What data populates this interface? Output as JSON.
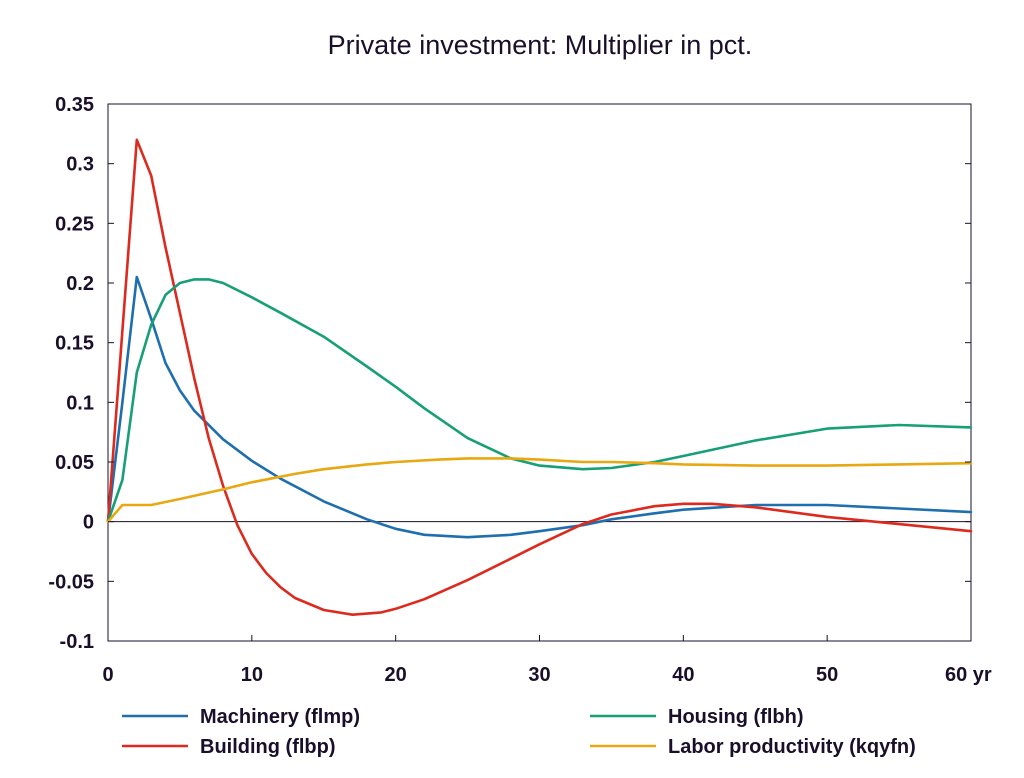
{
  "chart_data": {
    "type": "line",
    "title": "Private investment: Multiplier in pct.",
    "xlabel": "",
    "ylabel": "",
    "x_unit_label": "yr",
    "xlim": [
      0,
      60
    ],
    "ylim": [
      -0.1,
      0.35
    ],
    "xticks": [
      0,
      10,
      20,
      30,
      40,
      50,
      60
    ],
    "xtick_labels": [
      "0",
      "10",
      "20",
      "30",
      "40",
      "50",
      "60 yr"
    ],
    "yticks": [
      -0.1,
      -0.05,
      0,
      0.05,
      0.1,
      0.15,
      0.2,
      0.25,
      0.3,
      0.35
    ],
    "ytick_labels": [
      "-0.1",
      "-0.05",
      "0",
      "0.05",
      "0.1",
      "0.15",
      "0.2",
      "0.25",
      "0.3",
      "0.35"
    ],
    "grid": false,
    "zero_line": true,
    "legend_position": "bottom",
    "series": [
      {
        "name": "Machinery (flmp)",
        "color": "#1f6fae",
        "x": [
          0,
          1,
          2,
          3,
          4,
          5,
          6,
          8,
          10,
          12,
          15,
          18,
          20,
          22,
          25,
          28,
          30,
          33,
          35,
          38,
          40,
          45,
          50,
          55,
          60
        ],
        "y": [
          0,
          0.1,
          0.205,
          0.17,
          0.133,
          0.11,
          0.093,
          0.069,
          0.051,
          0.036,
          0.017,
          0.002,
          -0.006,
          -0.011,
          -0.013,
          -0.011,
          -0.008,
          -0.003,
          0.002,
          0.007,
          0.01,
          0.014,
          0.014,
          0.011,
          0.008
        ]
      },
      {
        "name": "Building (flbp)",
        "color": "#dc2a1f",
        "x": [
          0,
          1,
          2,
          3,
          4,
          5,
          6,
          7,
          8,
          9,
          10,
          11,
          12,
          13,
          15,
          17,
          19,
          20,
          22,
          25,
          28,
          30,
          33,
          35,
          38,
          40,
          42,
          45,
          50,
          55,
          60
        ],
        "y": [
          0,
          0.16,
          0.32,
          0.29,
          0.23,
          0.175,
          0.12,
          0.07,
          0.03,
          -0.003,
          -0.027,
          -0.043,
          -0.055,
          -0.064,
          -0.074,
          -0.078,
          -0.076,
          -0.073,
          -0.065,
          -0.049,
          -0.031,
          -0.019,
          -0.002,
          0.006,
          0.013,
          0.015,
          0.015,
          0.012,
          0.004,
          -0.002,
          -0.008
        ]
      },
      {
        "name": "Housing (flbh)",
        "color": "#179f75",
        "x": [
          0,
          1,
          2,
          3,
          4,
          5,
          6,
          7,
          8,
          10,
          12,
          15,
          18,
          20,
          22,
          25,
          28,
          30,
          33,
          35,
          38,
          40,
          45,
          50,
          55,
          60
        ],
        "y": [
          0,
          0.035,
          0.125,
          0.165,
          0.19,
          0.2,
          0.203,
          0.203,
          0.2,
          0.188,
          0.175,
          0.155,
          0.13,
          0.113,
          0.095,
          0.07,
          0.053,
          0.047,
          0.044,
          0.045,
          0.05,
          0.055,
          0.068,
          0.078,
          0.081,
          0.079
        ]
      },
      {
        "name": "Labor productivity (kqyfn)",
        "color": "#e7a812",
        "x": [
          0,
          1,
          2,
          3,
          5,
          8,
          10,
          13,
          15,
          18,
          20,
          23,
          25,
          28,
          30,
          33,
          35,
          38,
          40,
          45,
          50,
          55,
          60
        ],
        "y": [
          0,
          0.014,
          0.014,
          0.014,
          0.019,
          0.027,
          0.033,
          0.04,
          0.044,
          0.048,
          0.05,
          0.052,
          0.053,
          0.053,
          0.052,
          0.05,
          0.05,
          0.049,
          0.048,
          0.047,
          0.047,
          0.048,
          0.049
        ]
      }
    ]
  }
}
